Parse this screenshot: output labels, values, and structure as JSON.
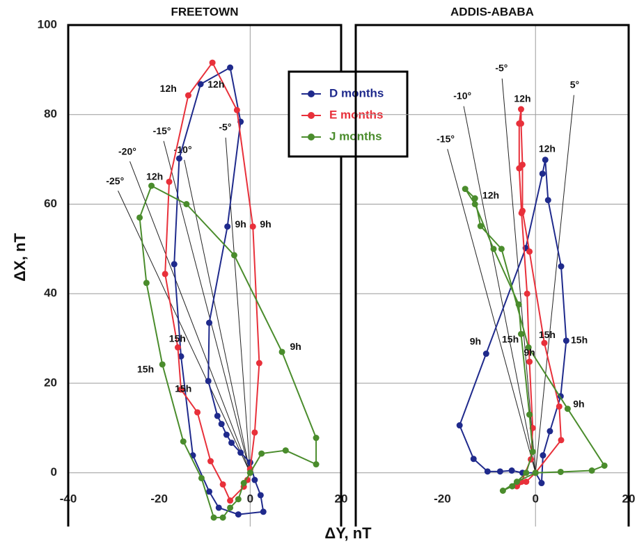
{
  "chart_data": [
    {
      "type": "line",
      "title": "FREETOWN",
      "xlabel": "ΔY, nT",
      "ylabel": "ΔX, nT",
      "xlim": [
        -40,
        20
      ],
      "ylim": [
        -12,
        100
      ],
      "xticks": [
        -40,
        -20,
        0,
        20
      ],
      "yticks": [
        0,
        20,
        40,
        60,
        80,
        100
      ],
      "grid": true,
      "zero_line": true,
      "show_ytick_labels": true,
      "series": [
        {
          "name": "D months",
          "color": "#1f2a8c",
          "x": [
            0,
            -2.1,
            -4.1,
            -5.2,
            -6.3,
            -7.2,
            -9.2,
            -9,
            -5,
            -2.1,
            -4.4,
            -10.9,
            -15.6,
            -16.7,
            -15.2,
            -12.6,
            -9,
            -6.9,
            -2.6,
            2.9,
            2.3,
            1,
            0
          ],
          "values": [
            2.3,
            4.5,
            6.7,
            8.5,
            10.9,
            12.7,
            20.5,
            33.5,
            55,
            78.4,
            90.5,
            86.8,
            70.2,
            46.6,
            26,
            3.9,
            -4.2,
            -7.8,
            -9.3,
            -8.7,
            -5,
            -1.6,
            2.3
          ]
        },
        {
          "name": "E months",
          "color": "#e8303a",
          "x": [
            0,
            1,
            2,
            0.6,
            -2.9,
            -8.3,
            -13.6,
            -17.8,
            -18.7,
            -15.9,
            -15.2,
            -11.6,
            -8.7,
            -6,
            -4.4,
            -1.4,
            -0.6,
            0
          ],
          "values": [
            0.8,
            9,
            24.5,
            55,
            81,
            91.6,
            84.3,
            65,
            44.4,
            28,
            18.6,
            13.5,
            2.6,
            -2.6,
            -6.2,
            -3.1,
            -1.6,
            0.8
          ]
        },
        {
          "name": "J months",
          "color": "#4a8c2c",
          "x": [
            0,
            2.5,
            7.8,
            14.5,
            14.5,
            7,
            -3.5,
            -14,
            -21.7,
            -24.3,
            -22.8,
            -19.3,
            -14.7,
            -10.7,
            -8,
            -6,
            -4.4,
            -2.6,
            -1.4,
            0
          ],
          "values": [
            0,
            4.3,
            5,
            1.9,
            7.8,
            27,
            48.6,
            60,
            64.1,
            57,
            42.4,
            24.2,
            7,
            -1.2,
            -10,
            -10,
            -7.8,
            -5.9,
            -2.3,
            0
          ]
        }
      ],
      "annotations": [
        {
          "text": "12h",
          "x": -18,
          "y": 85.7
        },
        {
          "text": "12h",
          "x": -7.5,
          "y": 86.6
        },
        {
          "text": "12h",
          "x": -21,
          "y": 66
        },
        {
          "text": "9h",
          "x": -2.1,
          "y": 55.4
        },
        {
          "text": "9h",
          "x": 3.4,
          "y": 55.4
        },
        {
          "text": "9h",
          "x": 10,
          "y": 28
        },
        {
          "text": "15h",
          "x": -16,
          "y": 29.8
        },
        {
          "text": "15h",
          "x": -23,
          "y": 23
        },
        {
          "text": "15h",
          "x": -14.7,
          "y": 18.6
        }
      ],
      "angle_lines": [
        {
          "label": "-25°",
          "x": -29.7,
          "y": 64.4
        },
        {
          "label": "-20°",
          "x": -27,
          "y": 71
        },
        {
          "label": "-15°",
          "x": -19.4,
          "y": 75.6
        },
        {
          "label": "-10°",
          "x": -14.8,
          "y": 71.4
        },
        {
          "label": "-5°",
          "x": -5.5,
          "y": 76.4
        }
      ]
    },
    {
      "type": "line",
      "title": "ADDIS-ABABA",
      "xlim": [
        -38.6,
        20
      ],
      "ylim": [
        -12,
        100
      ],
      "xticks": [
        -20,
        0,
        20
      ],
      "yticks": [
        0,
        20,
        40,
        60,
        80,
        100
      ],
      "grid": true,
      "zero_line": true,
      "show_ytick_labels": false,
      "series": [
        {
          "color": "#1f2a8c",
          "x": [
            0,
            -2.8,
            -5.1,
            -7.6,
            -10.3,
            -13.3,
            -16.3,
            -10.6,
            -2.1,
            1.5,
            2.1,
            2.7,
            5.5,
            6.6,
            5.4,
            3.1,
            1.6,
            1.3,
            0
          ],
          "values": [
            0,
            0,
            0.5,
            0.3,
            0.3,
            3.1,
            10.6,
            26.6,
            50.2,
            66.8,
            69.9,
            60.9,
            46.1,
            29.5,
            17.1,
            9.3,
            3.9,
            -2.3,
            0
          ]
        },
        {
          "color": "#e8303a",
          "x": [
            0,
            5.5,
            5.1,
            1.9,
            -1.3,
            -2.8,
            -2.8,
            -3.1,
            -3.1,
            -3.5,
            -3.5,
            -3,
            -1.8,
            -1.3,
            -0.6,
            -1,
            -3,
            -4,
            -2,
            0
          ],
          "values": [
            0,
            7.3,
            14.8,
            29,
            49.4,
            58.5,
            68.8,
            78,
            81.2,
            78,
            68,
            58,
            40,
            24.8,
            10,
            3,
            -2,
            -3,
            -2,
            0
          ]
        },
        {
          "color": "#4a8c2c",
          "x": [
            0,
            5.4,
            12.1,
            14.8,
            6.9,
            -1.5,
            -7.3,
            -11.8,
            -13,
            -15.1,
            -13,
            -9,
            -3.6,
            -3.1,
            -1.3,
            -0.6,
            -2,
            -5,
            -7,
            -4,
            0
          ],
          "values": [
            0,
            0.2,
            0.5,
            1.6,
            14.3,
            28,
            50,
            55.1,
            61.3,
            63.4,
            60,
            50,
            37.6,
            31,
            13,
            4.7,
            0,
            -3,
            -4,
            -2,
            0
          ]
        }
      ],
      "annotations": [
        {
          "text": "12h",
          "x": -2.8,
          "y": 83.4
        },
        {
          "text": "12h",
          "x": 2.5,
          "y": 72.2
        },
        {
          "text": "12h",
          "x": -9.6,
          "y": 61.8
        },
        {
          "text": "9h",
          "x": -12.9,
          "y": 29.2
        },
        {
          "text": "15h",
          "x": -5.4,
          "y": 29.7
        },
        {
          "text": "9h",
          "x": -1.3,
          "y": 26.7
        },
        {
          "text": "15h",
          "x": 2.5,
          "y": 30.7
        },
        {
          "text": "15h",
          "x": 9.4,
          "y": 29.5
        },
        {
          "text": "9h",
          "x": 9.3,
          "y": 15.2
        }
      ],
      "angle_lines": [
        {
          "label": "-15°",
          "x": -19.3,
          "y": 73.8
        },
        {
          "label": "-10°",
          "x": -15.7,
          "y": 83.4
        },
        {
          "label": "-5°",
          "x": -7.3,
          "y": 89.6
        },
        {
          "label": "5°",
          "x": 8.4,
          "y": 85.9
        }
      ]
    }
  ]
}
